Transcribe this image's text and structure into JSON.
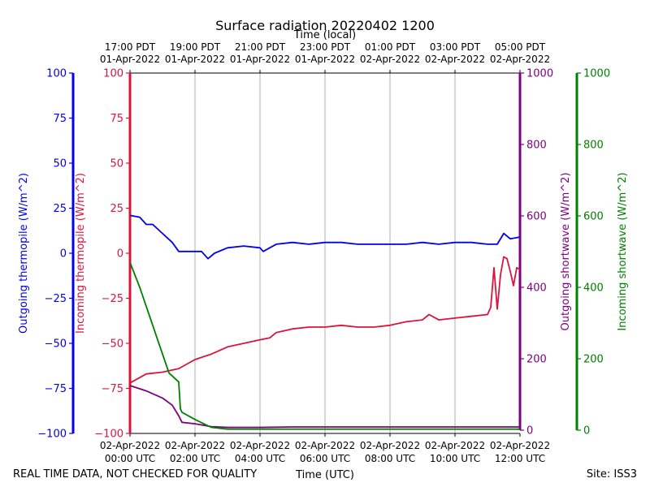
{
  "chart_data": {
    "type": "line",
    "title": "Surface radiation 20220402 1200",
    "top_axis_label": "Time (local)",
    "bottom_axis_label": "Time (UTC)",
    "footer_left": "REAL TIME DATA, NOT CHECKED FOR QUALITY",
    "footer_right": "Site: ISS3",
    "x_range_hours": [
      0,
      12
    ],
    "top_ticks": [
      {
        "hour": 0,
        "l1": "17:00 PDT",
        "l2": "01-Apr-2022"
      },
      {
        "hour": 2,
        "l1": "19:00 PDT",
        "l2": "01-Apr-2022"
      },
      {
        "hour": 4,
        "l1": "21:00 PDT",
        "l2": "01-Apr-2022"
      },
      {
        "hour": 6,
        "l1": "23:00 PDT",
        "l2": "01-Apr-2022"
      },
      {
        "hour": 8,
        "l1": "01:00 PDT",
        "l2": "02-Apr-2022"
      },
      {
        "hour": 10,
        "l1": "03:00 PDT",
        "l2": "02-Apr-2022"
      },
      {
        "hour": 12,
        "l1": "05:00 PDT",
        "l2": "02-Apr-2022"
      }
    ],
    "bottom_ticks": [
      {
        "hour": 0,
        "l1": "02-Apr-2022",
        "l2": "00:00 UTC"
      },
      {
        "hour": 2,
        "l1": "02-Apr-2022",
        "l2": "02:00 UTC"
      },
      {
        "hour": 4,
        "l1": "02-Apr-2022",
        "l2": "04:00 UTC"
      },
      {
        "hour": 6,
        "l1": "02-Apr-2022",
        "l2": "06:00 UTC"
      },
      {
        "hour": 8,
        "l1": "02-Apr-2022",
        "l2": "08:00 UTC"
      },
      {
        "hour": 10,
        "l1": "02-Apr-2022",
        "l2": "10:00 UTC"
      },
      {
        "hour": 12,
        "l1": "02-Apr-2022",
        "l2": "12:00 UTC"
      }
    ],
    "axes": {
      "outgoing_thermopile": {
        "label": "Outgoing thermopile (W/m^2)",
        "color": "#0000ee",
        "ylim": [
          -100,
          100
        ],
        "ticks": [
          "100",
          "75",
          "50",
          "25",
          "0",
          "−25",
          "−50",
          "−75",
          "−100"
        ],
        "tick_values": [
          100,
          75,
          50,
          25,
          0,
          -25,
          -50,
          -75,
          -100
        ]
      },
      "incoming_thermopile": {
        "label": "Incoming thermopile (W/m^2)",
        "color": "#dc143c",
        "ylim": [
          -100,
          100
        ],
        "ticks": [
          "100",
          "75",
          "50",
          "25",
          "0",
          "−25",
          "−50",
          "−75",
          "−100"
        ],
        "tick_values": [
          100,
          75,
          50,
          25,
          0,
          -25,
          -50,
          -75,
          -100
        ]
      },
      "outgoing_shortwave": {
        "label": "Outgoing shortwave (W/m^2)",
        "color": "#800080",
        "ylim": [
          0,
          1000
        ],
        "ticks": [
          "1000",
          "800",
          "600",
          "400",
          "200",
          "0"
        ],
        "tick_values": [
          1000,
          800,
          600,
          400,
          200,
          0
        ]
      },
      "incoming_shortwave": {
        "label": "Incoming shortwave (W/m^2)",
        "color": "#008000",
        "ylim": [
          0,
          1000
        ],
        "ticks": [
          "1000",
          "800",
          "600",
          "400",
          "200",
          "0"
        ],
        "tick_values": [
          1000,
          800,
          600,
          400,
          200,
          0
        ]
      }
    },
    "series": [
      {
        "name": "Outgoing thermopile",
        "axis": "outgoing_thermopile",
        "color": "#0000ee",
        "x": [
          0,
          0.3,
          0.5,
          0.7,
          1.0,
          1.3,
          1.5,
          1.8,
          2.2,
          2.4,
          2.6,
          3.0,
          3.5,
          4.0,
          4.1,
          4.3,
          4.5,
          5.0,
          5.5,
          6.0,
          6.5,
          7.0,
          7.5,
          8.0,
          8.5,
          9.0,
          9.5,
          10.0,
          10.5,
          11.0,
          11.3,
          11.5,
          11.7,
          12.0
        ],
        "y": [
          21,
          20,
          16,
          16,
          11,
          6,
          1,
          1,
          1,
          -3,
          0,
          3,
          4,
          3,
          1,
          3,
          5,
          6,
          5,
          6,
          6,
          5,
          5,
          5,
          5,
          6,
          5,
          6,
          6,
          5,
          5,
          11,
          8,
          9
        ]
      },
      {
        "name": "Incoming thermopile",
        "axis": "incoming_thermopile",
        "color": "#dc143c",
        "x": [
          0,
          0.5,
          1.0,
          1.5,
          2.0,
          2.5,
          3.0,
          3.5,
          4.0,
          4.3,
          4.5,
          5.0,
          5.5,
          6.0,
          6.5,
          7.0,
          7.5,
          8.0,
          8.5,
          9.0,
          9.2,
          9.5,
          10.0,
          10.5,
          11.0,
          11.1,
          11.2,
          11.3,
          11.4,
          11.5,
          11.6,
          11.7,
          11.8,
          11.9,
          12.0
        ],
        "y": [
          -72,
          -67,
          -66,
          -64,
          -59,
          -56,
          -52,
          -50,
          -48,
          -47,
          -44,
          -42,
          -41,
          -41,
          -40,
          -41,
          -41,
          -40,
          -38,
          -37,
          -34,
          -37,
          -36,
          -35,
          -34,
          -30,
          -8,
          -31,
          -12,
          -2,
          -3,
          -10,
          -18,
          -8,
          -9
        ]
      },
      {
        "name": "Outgoing shortwave",
        "axis": "outgoing_shortwave",
        "color": "#800080",
        "x": [
          0,
          0.5,
          1.0,
          1.3,
          1.5,
          1.6,
          2.0,
          2.5,
          3.0,
          4.0,
          5.0,
          6.0,
          7.0,
          8.0,
          9.0,
          10.0,
          11.0,
          12.0
        ],
        "y": [
          125,
          110,
          90,
          70,
          40,
          22,
          18,
          10,
          8,
          8,
          9,
          9,
          9,
          9,
          9,
          9,
          9,
          9
        ]
      },
      {
        "name": "Incoming shortwave",
        "axis": "incoming_shortwave",
        "color": "#008000",
        "x": [
          0,
          0.3,
          0.6,
          0.9,
          1.2,
          1.5,
          1.55,
          1.6,
          2.0,
          2.5,
          3.0,
          4.0,
          6.0,
          8.0,
          10.0,
          12.0
        ],
        "y": [
          470,
          400,
          320,
          240,
          160,
          135,
          60,
          50,
          30,
          8,
          3,
          3,
          3,
          3,
          3,
          3
        ]
      }
    ]
  }
}
